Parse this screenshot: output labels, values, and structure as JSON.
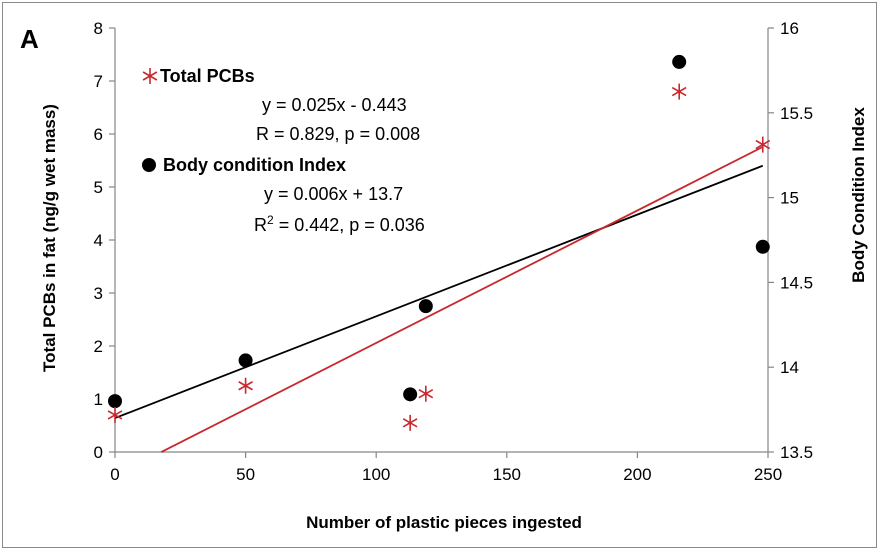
{
  "chart_data": {
    "type": "scatter",
    "panel_label": "A",
    "xlabel": "Number of plastic pieces ingested",
    "ylabel": "Total PCBs in fat (ng/g wet mass)",
    "y2label": "Body Condition Index",
    "xlim": [
      0,
      250
    ],
    "ylim": [
      0,
      8
    ],
    "y2lim": [
      13.5,
      16
    ],
    "xticks": [
      "0",
      "50",
      "100",
      "150",
      "200",
      "250"
    ],
    "yticks": [
      "0",
      "1",
      "2",
      "3",
      "4",
      "5",
      "6",
      "7",
      "8"
    ],
    "y2ticks": [
      "13.5",
      "14",
      "14.5",
      "15",
      "15.5",
      "16"
    ],
    "grid": false,
    "legend_position": "top-left",
    "series": [
      {
        "name": "Total PCBs",
        "axis": "left",
        "marker": "asterisk",
        "color": "#c8282d",
        "points": [
          {
            "x": 0,
            "y": 0.7
          },
          {
            "x": 50,
            "y": 1.25
          },
          {
            "x": 113,
            "y": 0.55
          },
          {
            "x": 119,
            "y": 1.1
          },
          {
            "x": 216,
            "y": 6.8
          },
          {
            "x": 248,
            "y": 5.8
          }
        ],
        "fit": {
          "slope": 0.025,
          "intercept": -0.443,
          "x_range": [
            17.7,
            248
          ]
        },
        "equation": "y = 0.025x - 0.443",
        "stats": "R = 0.829, p = 0.008"
      },
      {
        "name": "Body condition Index",
        "axis": "right",
        "marker": "circle",
        "color": "#000000",
        "points": [
          {
            "x": 0,
            "y": 13.8
          },
          {
            "x": 50,
            "y": 14.04
          },
          {
            "x": 113,
            "y": 13.84
          },
          {
            "x": 119,
            "y": 14.36
          },
          {
            "x": 216,
            "y": 15.8
          },
          {
            "x": 248,
            "y": 14.71
          }
        ],
        "fit": {
          "slope": 0.006,
          "intercept": 13.7,
          "x_range": [
            0,
            248
          ]
        },
        "equation": "y = 0.006x + 13.7",
        "stats_prefix": "R",
        "stats_sup": "2",
        "stats_suffix": " = 0.442, p = 0.036"
      }
    ]
  }
}
